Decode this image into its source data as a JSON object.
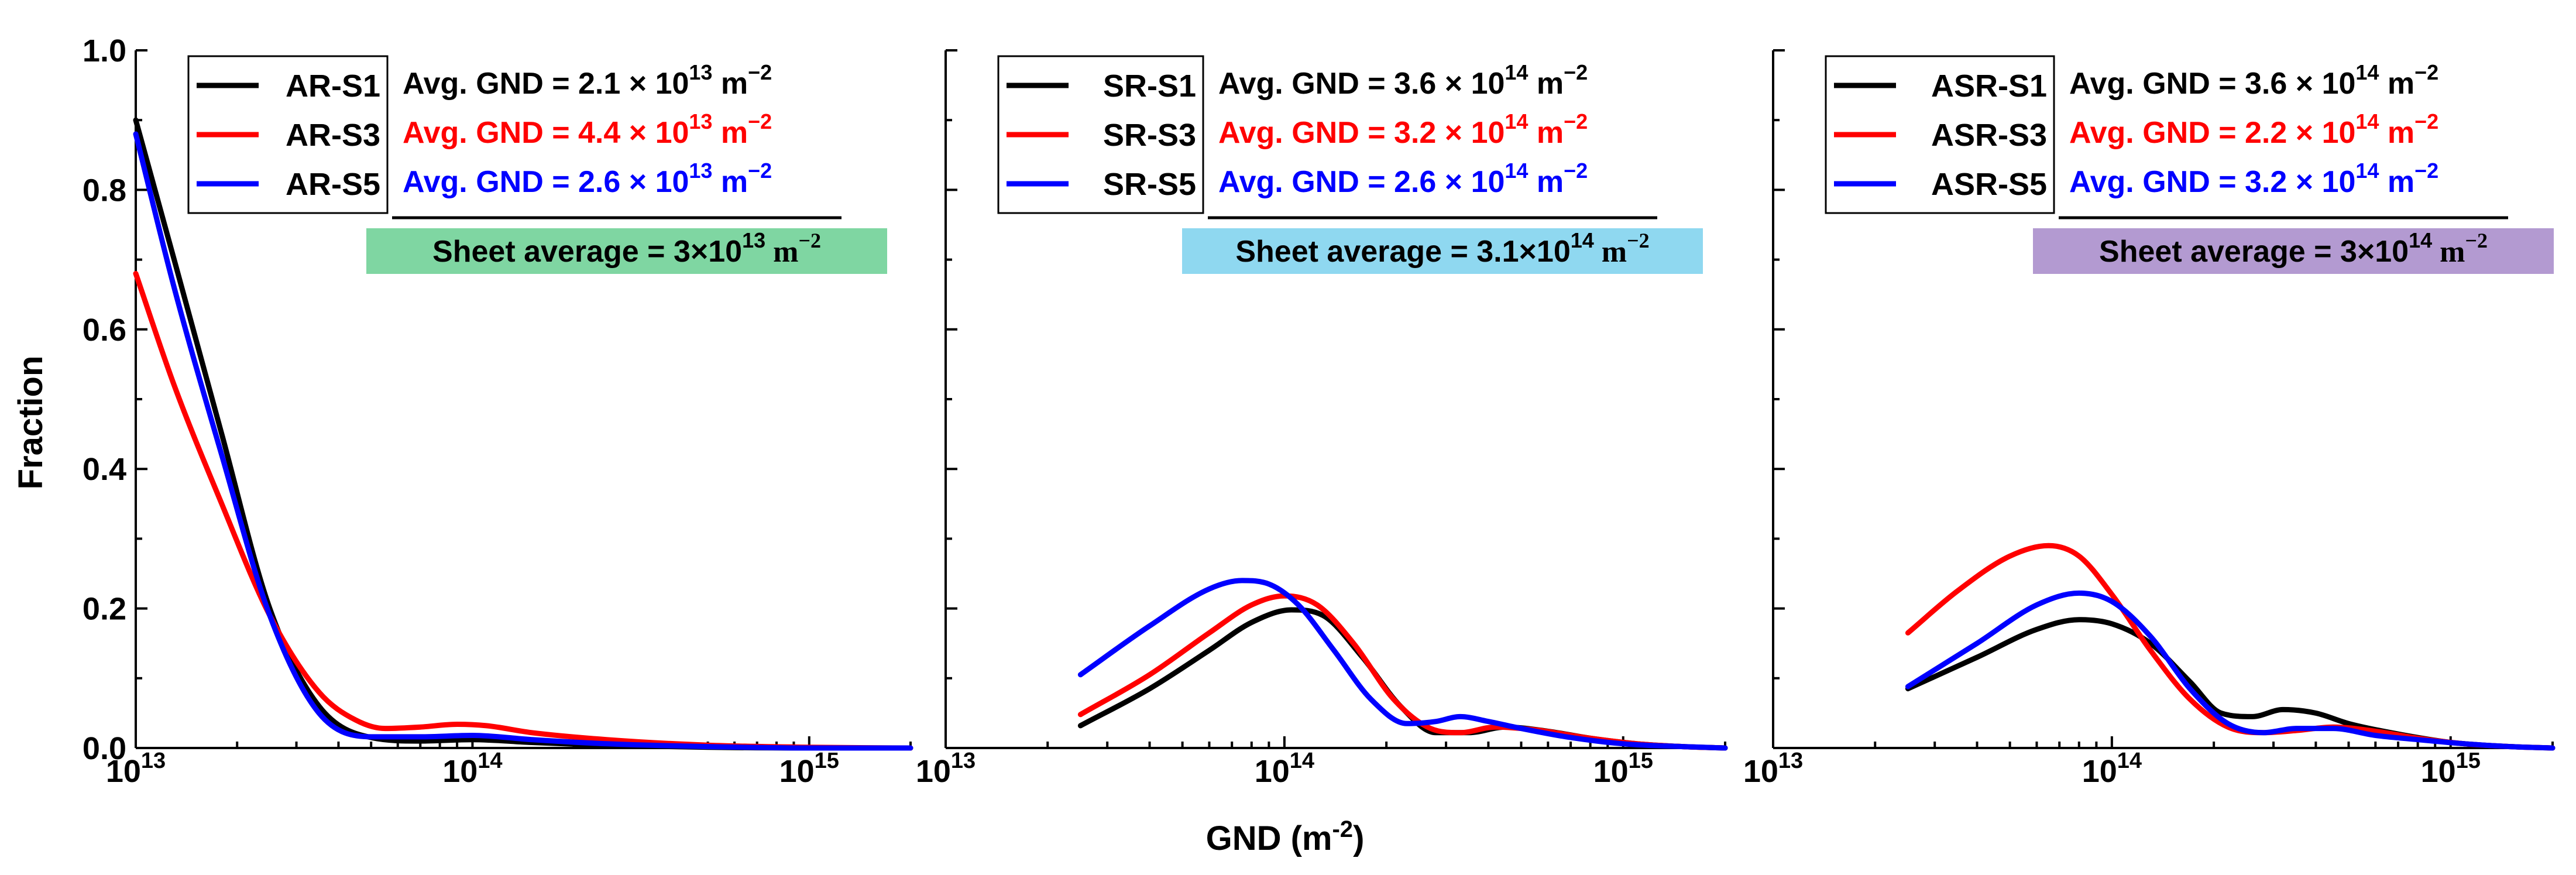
{
  "figure": {
    "y_axis_label": "Fraction",
    "x_axis_label_base": "GND (m",
    "x_axis_label_exp": "-2",
    "x_axis_label_close": ")"
  },
  "chart_data": [
    {
      "type": "line",
      "panel": "AR",
      "xscale": "log",
      "xlim": [
        10000000000000.0,
        2000000000000000.0
      ],
      "ylim": [
        0,
        1.0
      ],
      "xlabel": "GND (m-2)",
      "ylabel": "Fraction",
      "xticks": [
        {
          "base": "10",
          "exp": "13"
        },
        {
          "base": "10",
          "exp": "14"
        },
        {
          "base": "10",
          "exp": "15"
        }
      ],
      "yticks": [
        "0.0",
        "0.2",
        "0.4",
        "0.6",
        "0.8",
        "1.0"
      ],
      "legend_position": "top-left",
      "series": [
        {
          "name": "AR-S1",
          "color": "#000000",
          "x": [
            10000000000000.0,
            13000000000000.0,
            18000000000000.0,
            25000000000000.0,
            35000000000000.0,
            50000000000000.0,
            70000000000000.0,
            100000000000000.0,
            150000000000000.0,
            250000000000000.0,
            500000000000000.0,
            1000000000000000.0,
            2000000000000000.0
          ],
          "y": [
            0.9,
            0.7,
            0.45,
            0.2,
            0.06,
            0.015,
            0.01,
            0.012,
            0.008,
            0.004,
            0.001,
            0.0,
            0.0
          ]
        },
        {
          "name": "AR-S3",
          "color": "#ff0000",
          "x": [
            10000000000000.0,
            13000000000000.0,
            18000000000000.0,
            25000000000000.0,
            35000000000000.0,
            45000000000000.0,
            55000000000000.0,
            70000000000000.0,
            90000000000000.0,
            110000000000000.0,
            150000000000000.0,
            250000000000000.0,
            500000000000000.0,
            1000000000000000.0,
            2000000000000000.0
          ],
          "y": [
            0.68,
            0.52,
            0.35,
            0.19,
            0.08,
            0.04,
            0.028,
            0.03,
            0.034,
            0.032,
            0.022,
            0.012,
            0.004,
            0.001,
            0.0
          ]
        },
        {
          "name": "AR-S5",
          "color": "#0000ff",
          "x": [
            10000000000000.0,
            13000000000000.0,
            18000000000000.0,
            25000000000000.0,
            35000000000000.0,
            50000000000000.0,
            70000000000000.0,
            100000000000000.0,
            150000000000000.0,
            250000000000000.0,
            500000000000000.0,
            1000000000000000.0,
            2000000000000000.0
          ],
          "y": [
            0.88,
            0.66,
            0.42,
            0.19,
            0.05,
            0.016,
            0.016,
            0.018,
            0.012,
            0.006,
            0.002,
            0.0,
            0.0
          ]
        }
      ],
      "annotations": [
        {
          "prefix": "Avg. GND = 2.1",
          "exp": "13",
          "color": "#000000"
        },
        {
          "prefix": "Avg. GND = 4.4",
          "exp": "13",
          "color": "#ff0000"
        },
        {
          "prefix": "Avg. GND = 2.6",
          "exp": "13",
          "color": "#0000ff"
        }
      ],
      "sheet_average": {
        "prefix": "Sheet average = 3",
        "exp": "13",
        "bg": "#7fd6a2"
      }
    },
    {
      "type": "line",
      "panel": "SR",
      "xscale": "log",
      "xlim": [
        10000000000000.0,
        2000000000000000.0
      ],
      "ylim": [
        0,
        1.0
      ],
      "xticks": [
        {
          "base": "10",
          "exp": "13"
        },
        {
          "base": "10",
          "exp": "14"
        },
        {
          "base": "10",
          "exp": "15"
        }
      ],
      "legend_position": "top-left",
      "series": [
        {
          "name": "SR-S1",
          "color": "#000000",
          "x": [
            25000000000000.0,
            40000000000000.0,
            60000000000000.0,
            80000000000000.0,
            105000000000000.0,
            130000000000000.0,
            170000000000000.0,
            220000000000000.0,
            280000000000000.0,
            350000000000000.0,
            450000000000000.0,
            600000000000000.0,
            800000000000000.0,
            1100000000000000.0,
            1500000000000000.0,
            2000000000000000.0
          ],
          "y": [
            0.032,
            0.085,
            0.14,
            0.18,
            0.198,
            0.19,
            0.13,
            0.06,
            0.022,
            0.022,
            0.03,
            0.024,
            0.014,
            0.006,
            0.002,
            0.0
          ]
        },
        {
          "name": "SR-S3",
          "color": "#ff0000",
          "x": [
            25000000000000.0,
            40000000000000.0,
            60000000000000.0,
            80000000000000.0,
            100000000000000.0,
            125000000000000.0,
            160000000000000.0,
            210000000000000.0,
            270000000000000.0,
            330000000000000.0,
            420000000000000.0,
            550000000000000.0,
            800000000000000.0,
            1100000000000000.0,
            1500000000000000.0,
            2000000000000000.0
          ],
          "y": [
            0.048,
            0.105,
            0.165,
            0.205,
            0.218,
            0.205,
            0.15,
            0.07,
            0.028,
            0.022,
            0.03,
            0.026,
            0.014,
            0.006,
            0.002,
            0.0
          ]
        },
        {
          "name": "SR-S5",
          "color": "#0000ff",
          "x": [
            25000000000000.0,
            40000000000000.0,
            60000000000000.0,
            75000000000000.0,
            90000000000000.0,
            110000000000000.0,
            140000000000000.0,
            180000000000000.0,
            230000000000000.0,
            280000000000000.0,
            330000000000000.0,
            400000000000000.0,
            500000000000000.0,
            700000000000000.0,
            1000000000000000.0,
            1500000000000000.0,
            2000000000000000.0
          ],
          "y": [
            0.105,
            0.175,
            0.228,
            0.24,
            0.235,
            0.205,
            0.14,
            0.07,
            0.035,
            0.038,
            0.045,
            0.038,
            0.028,
            0.015,
            0.006,
            0.002,
            0.0
          ]
        }
      ],
      "annotations": [
        {
          "prefix": "Avg. GND = 3.6",
          "exp": "14",
          "color": "#000000"
        },
        {
          "prefix": "Avg. GND = 3.2",
          "exp": "14",
          "color": "#ff0000"
        },
        {
          "prefix": "Avg. GND = 2.6",
          "exp": "14",
          "color": "#0000ff"
        }
      ],
      "sheet_average": {
        "prefix": "Sheet average = 3.1",
        "exp": "14",
        "bg": "#8fd8f0"
      }
    },
    {
      "type": "line",
      "panel": "ASR",
      "xscale": "log",
      "xlim": [
        10000000000000.0,
        2000000000000000.0
      ],
      "ylim": [
        0,
        1.0
      ],
      "xticks": [
        {
          "base": "10",
          "exp": "13"
        },
        {
          "base": "10",
          "exp": "14"
        },
        {
          "base": "10",
          "exp": "15"
        }
      ],
      "legend_position": "top-left",
      "series": [
        {
          "name": "ASR-S1",
          "color": "#000000",
          "x": [
            25000000000000.0,
            40000000000000.0,
            60000000000000.0,
            80000000000000.0,
            100000000000000.0,
            130000000000000.0,
            170000000000000.0,
            210000000000000.0,
            260000000000000.0,
            320000000000000.0,
            400000000000000.0,
            500000000000000.0,
            700000000000000.0,
            1000000000000000.0,
            1500000000000000.0,
            2000000000000000.0
          ],
          "y": [
            0.085,
            0.13,
            0.17,
            0.184,
            0.178,
            0.15,
            0.095,
            0.05,
            0.045,
            0.055,
            0.05,
            0.035,
            0.02,
            0.008,
            0.002,
            0.0
          ]
        },
        {
          "name": "ASR-S3",
          "color": "#ff0000",
          "x": [
            25000000000000.0,
            35000000000000.0,
            50000000000000.0,
            65000000000000.0,
            80000000000000.0,
            100000000000000.0,
            130000000000000.0,
            170000000000000.0,
            220000000000000.0,
            280000000000000.0,
            350000000000000.0,
            450000000000000.0,
            600000000000000.0,
            800000000000000.0,
            1100000000000000.0,
            1500000000000000.0,
            2000000000000000.0
          ],
          "y": [
            0.165,
            0.225,
            0.275,
            0.29,
            0.275,
            0.22,
            0.14,
            0.07,
            0.03,
            0.022,
            0.025,
            0.03,
            0.024,
            0.014,
            0.006,
            0.002,
            0.0
          ]
        },
        {
          "name": "ASR-S5",
          "color": "#0000ff",
          "x": [
            25000000000000.0,
            40000000000000.0,
            60000000000000.0,
            80000000000000.0,
            100000000000000.0,
            130000000000000.0,
            170000000000000.0,
            220000000000000.0,
            280000000000000.0,
            350000000000000.0,
            450000000000000.0,
            600000000000000.0,
            800000000000000.0,
            1100000000000000.0,
            1500000000000000.0,
            2000000000000000.0
          ],
          "y": [
            0.088,
            0.15,
            0.205,
            0.222,
            0.21,
            0.16,
            0.085,
            0.035,
            0.022,
            0.028,
            0.028,
            0.018,
            0.012,
            0.006,
            0.002,
            0.0
          ]
        }
      ],
      "annotations": [
        {
          "prefix": "Avg. GND = 3.6",
          "exp": "14",
          "color": "#000000"
        },
        {
          "prefix": "Avg. GND = 2.2",
          "exp": "14",
          "color": "#ff0000"
        },
        {
          "prefix": "Avg. GND = 3.2",
          "exp": "14",
          "color": "#0000ff"
        }
      ],
      "sheet_average": {
        "prefix": "Sheet average = 3",
        "exp": "14",
        "bg": "#b39ad1"
      }
    }
  ]
}
